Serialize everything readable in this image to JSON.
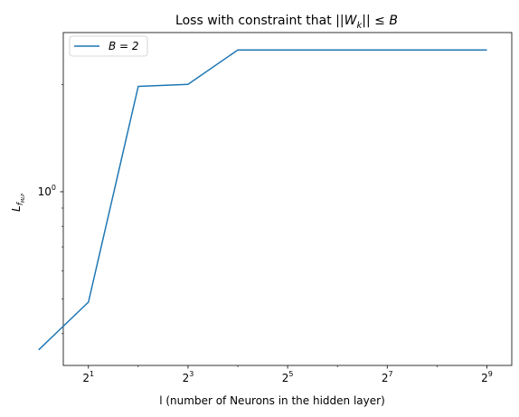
{
  "chart_data": {
    "type": "line",
    "title": "Loss with constraint that ||W_k|| ≤ B",
    "title_parts": {
      "prefix": "Loss with constraint that ||",
      "var": "W",
      "sub": "k",
      "suffix": "|| ≤ ",
      "bound": "B"
    },
    "xlabel": "l (number of Neurons in the hidden layer)",
    "ylabel": {
      "main": "L",
      "sub": "f",
      "subsub": "MLP"
    },
    "x_scale": "log2",
    "y_scale": "log10",
    "xlim": [
      1.41,
      724.1
    ],
    "ylim": [
      0.3256,
      2.7962
    ],
    "x_ticks": [
      {
        "value": 2,
        "base": "2",
        "exp": "1"
      },
      {
        "value": 8,
        "base": "2",
        "exp": "3"
      },
      {
        "value": 32,
        "base": "2",
        "exp": "5"
      },
      {
        "value": 128,
        "base": "2",
        "exp": "7"
      },
      {
        "value": 512,
        "base": "2",
        "exp": "9"
      }
    ],
    "y_ticks": [
      {
        "value": 1,
        "base": "10",
        "exp": "0"
      }
    ],
    "y_minor_ticks": [
      0.4,
      0.5,
      0.6,
      0.7,
      0.8,
      0.9,
      2
    ],
    "grid": false,
    "legend_position": "top-left",
    "series": [
      {
        "name": "B = 2",
        "color": "#1f77b4",
        "x": [
          1,
          2,
          4,
          8,
          16,
          32,
          64,
          128,
          256,
          512
        ],
        "y": [
          0.3601,
          0.4901,
          1.975,
          2.0,
          2.5,
          2.5,
          2.5,
          2.5,
          2.5,
          2.5
        ]
      }
    ]
  }
}
